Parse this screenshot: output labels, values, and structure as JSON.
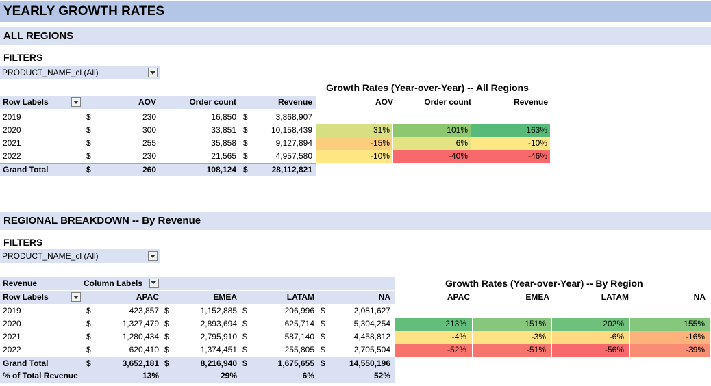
{
  "page_title": "YEARLY GROWTH RATES",
  "sections": {
    "all_regions": "ALL REGIONS",
    "regional": "REGIONAL BREAKDOWN -- By Revenue"
  },
  "filters_label": "FILTERS",
  "filter_value": "PRODUCT_NAME_cl (All)",
  "pivot1": {
    "headers": {
      "row_labels": "Row Labels",
      "aov": "AOV",
      "order_count": "Order count",
      "revenue": "Revenue"
    },
    "rows": [
      {
        "year": "2019",
        "aov_cur": "$",
        "aov": "230",
        "orders": "16,850",
        "rev_cur": "$",
        "revenue": "3,868,907"
      },
      {
        "year": "2020",
        "aov_cur": "$",
        "aov": "300",
        "orders": "33,851",
        "rev_cur": "$",
        "revenue": "10,158,439"
      },
      {
        "year": "2021",
        "aov_cur": "$",
        "aov": "255",
        "orders": "35,858",
        "rev_cur": "$",
        "revenue": "9,127,894"
      },
      {
        "year": "2022",
        "aov_cur": "$",
        "aov": "230",
        "orders": "21,565",
        "rev_cur": "$",
        "revenue": "4,957,580"
      }
    ],
    "total": {
      "label": "Grand Total",
      "aov_cur": "$",
      "aov": "260",
      "orders": "108,124",
      "rev_cur": "$",
      "revenue": "28,112,821"
    }
  },
  "growth1": {
    "title": "Growth Rates (Year-over-Year) -- All Regions",
    "headers": {
      "aov": "AOV",
      "order_count": "Order count",
      "revenue": "Revenue"
    },
    "rows": [
      {
        "aov": "31%",
        "orders": "101%",
        "revenue": "163%"
      },
      {
        "aov": "-15%",
        "orders": "6%",
        "revenue": "-10%"
      },
      {
        "aov": "-10%",
        "orders": "-40%",
        "revenue": "-46%"
      }
    ]
  },
  "pivot2": {
    "revenue_label": "Revenue",
    "column_labels": "Column Labels",
    "row_labels": "Row Labels",
    "regions": [
      "APAC",
      "EMEA",
      "LATAM",
      "NA"
    ],
    "rows": [
      {
        "year": "2019",
        "vals": [
          "423,857",
          "1,152,885",
          "206,996",
          "2,081,627"
        ]
      },
      {
        "year": "2020",
        "vals": [
          "1,327,479",
          "2,893,694",
          "625,714",
          "5,304,254"
        ]
      },
      {
        "year": "2021",
        "vals": [
          "1,280,434",
          "2,795,910",
          "587,140",
          "4,458,812"
        ]
      },
      {
        "year": "2022",
        "vals": [
          "620,410",
          "1,374,451",
          "255,805",
          "2,705,504"
        ]
      }
    ],
    "currency": "$",
    "total": {
      "label": "Grand Total",
      "vals": [
        "3,652,181",
        "8,216,940",
        "1,675,655",
        "14,550,196"
      ]
    },
    "pct": {
      "label": "% of Total Revenue",
      "vals": [
        "13%",
        "29%",
        "6%",
        "52%"
      ]
    }
  },
  "growth2": {
    "title": "Growth Rates (Year-over-Year) -- By Region",
    "regions": [
      "APAC",
      "EMEA",
      "LATAM",
      "NA"
    ],
    "rows": [
      [
        "213%",
        "151%",
        "202%",
        "155%"
      ],
      [
        "-4%",
        "-3%",
        "-6%",
        "-16%"
      ],
      [
        "-52%",
        "-51%",
        "-56%",
        "-39%"
      ]
    ]
  },
  "colors": {
    "g1": [
      [
        "#d6df81",
        "#8dc870",
        "#58ba79"
      ],
      [
        "#fdcd7e",
        "#e4e383",
        "#fee683"
      ],
      [
        "#fee683",
        "#f8696b",
        "#f8696b"
      ]
    ],
    "g2": [
      [
        "#63be7b",
        "#86c77d",
        "#6dc17c",
        "#84c77d"
      ],
      [
        "#fee283",
        "#fee283",
        "#fed981",
        "#fcb27a"
      ],
      [
        "#f8736c",
        "#f8756d",
        "#f8696b",
        "#f98d73"
      ]
    ]
  }
}
